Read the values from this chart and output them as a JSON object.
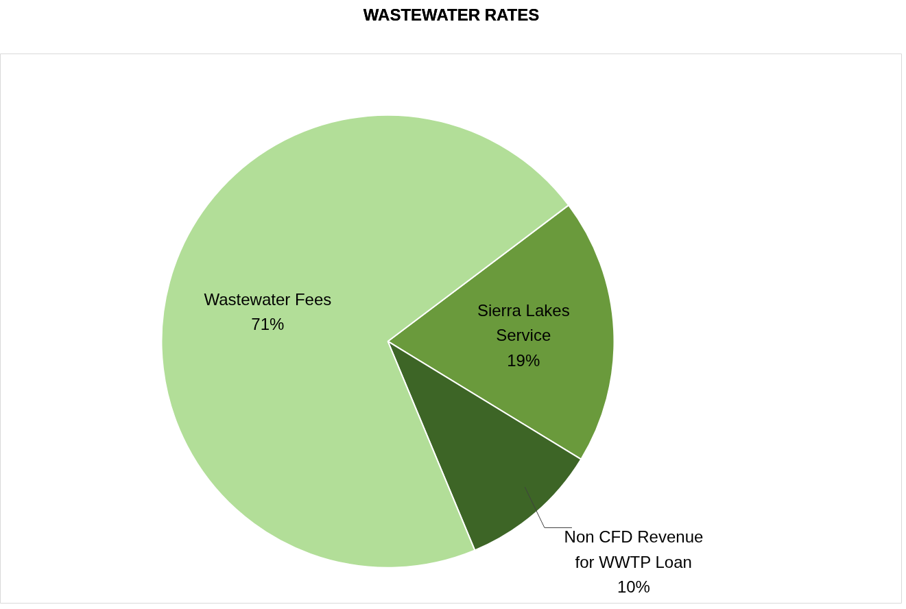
{
  "chart_data": {
    "type": "pie",
    "title": "WASTEWATER RATES",
    "categories": [
      "Sierra Lakes Service",
      "Non CFD Revenue for WWTP Loan",
      "Wastewater Fees"
    ],
    "values": [
      19,
      10,
      71
    ],
    "colors": [
      "#6a9a3c",
      "#3d6526",
      "#b2de98"
    ],
    "value_labels": [
      "19%",
      "10%",
      "71%"
    ]
  }
}
